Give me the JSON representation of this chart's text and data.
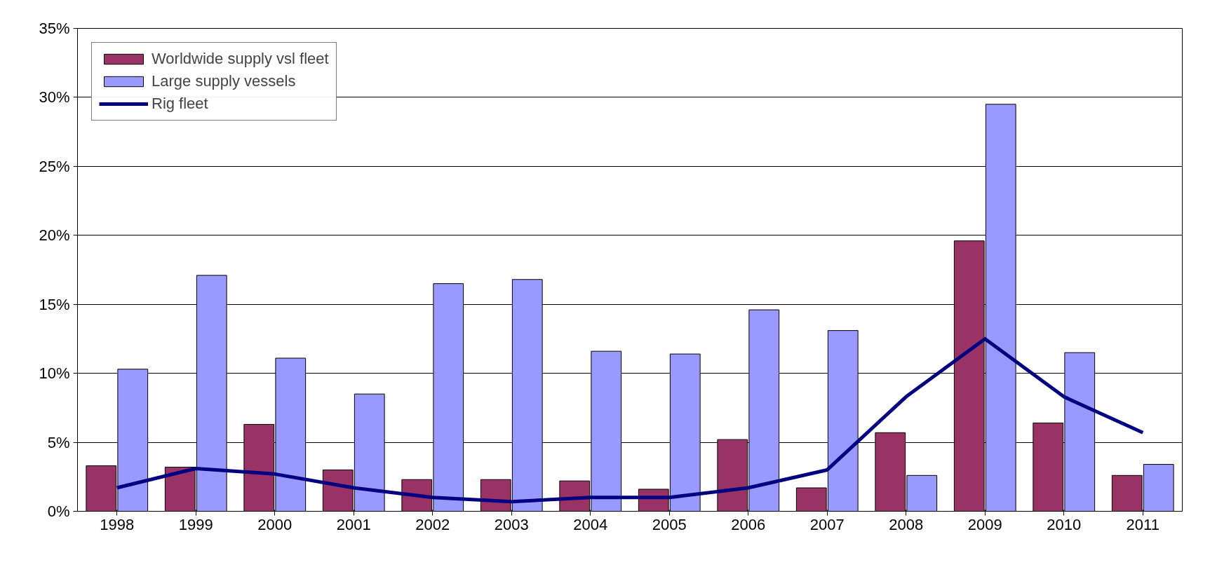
{
  "chart_data": {
    "type": "bar",
    "categories": [
      "1998",
      "1999",
      "2000",
      "2001",
      "2002",
      "2003",
      "2004",
      "2005",
      "2006",
      "2007",
      "2008",
      "2009",
      "2010",
      "2011"
    ],
    "series": [
      {
        "name": "Worldwide supply vsl fleet",
        "color": "#993366",
        "values": [
          3.3,
          3.2,
          6.3,
          3.0,
          2.3,
          2.3,
          2.2,
          1.6,
          5.2,
          1.7,
          5.7,
          19.6,
          6.4,
          2.6
        ]
      },
      {
        "name": "Large supply vessels",
        "color": "#9999ff",
        "values": [
          10.3,
          17.1,
          11.1,
          8.5,
          16.5,
          16.8,
          11.6,
          11.4,
          14.6,
          13.1,
          2.6,
          29.5,
          11.5,
          3.4
        ]
      },
      {
        "name": "Rig fleet",
        "type": "line",
        "color": "#000080",
        "values": [
          1.7,
          3.1,
          2.7,
          1.7,
          1.0,
          0.7,
          1.0,
          1.0,
          1.7,
          3.0,
          8.3,
          12.5,
          8.3,
          5.7
        ]
      }
    ],
    "ylim": [
      0,
      35
    ],
    "yticks": [
      {
        "value": 0,
        "label": "0%"
      },
      {
        "value": 5,
        "label": "5%"
      },
      {
        "value": 10,
        "label": "10%"
      },
      {
        "value": 15,
        "label": "15%"
      },
      {
        "value": 20,
        "label": "20%"
      },
      {
        "value": 25,
        "label": "25%"
      },
      {
        "value": 30,
        "label": "30%"
      },
      {
        "value": 35,
        "label": "35%"
      }
    ],
    "grid": "y",
    "legend": "top left",
    "line_style": "solid",
    "marker": "none"
  }
}
